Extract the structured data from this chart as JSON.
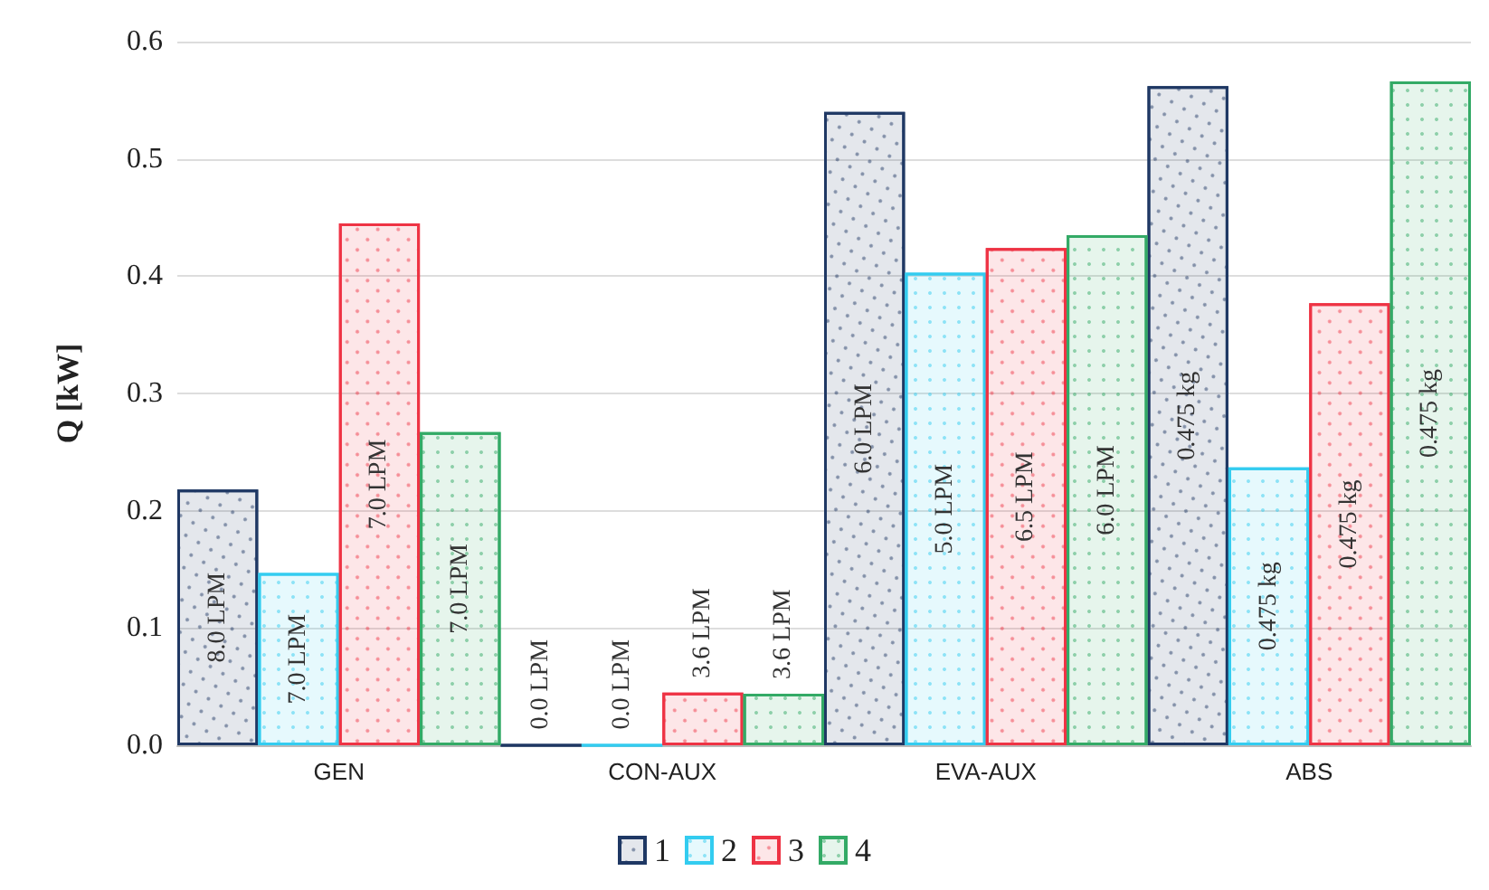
{
  "chart_data": {
    "type": "bar",
    "ylabel": "Q [kW]",
    "categories": [
      "GEN",
      "CON-AUX",
      "EVA-AUX",
      "ABS"
    ],
    "series": [
      {
        "name": "1",
        "color": "#1f3864",
        "values": [
          0.218,
          0,
          0.54,
          0.562
        ]
      },
      {
        "name": "2",
        "color": "#33ccf0",
        "values": [
          0.147,
          0,
          0.403,
          0.237
        ]
      },
      {
        "name": "3",
        "color": "#ee3344",
        "values": [
          0.445,
          0.045,
          0.424,
          0.377
        ]
      },
      {
        "name": "4",
        "color": "#33aa66",
        "values": [
          0.267,
          0.044,
          0.435,
          0.566
        ]
      }
    ],
    "annotations": [
      "8.0 LPM",
      "7.0 LPM",
      "7.0 LPM",
      "7.0 LPM",
      "0.0 LPM",
      "0.0 LPM",
      "3.6 LPM",
      "3.6 LPM",
      "6.0 LPM",
      "5.0 LPM",
      "6.5 LPM",
      "6.0 LPM",
      "0.475 kg",
      "0.475 kg",
      "0.475 kg",
      "0.475 kg"
    ],
    "ylim": [
      0,
      0.6
    ],
    "yticks": [
      {
        "value": 0,
        "label": "0.0"
      },
      0.1,
      0.2,
      0.3,
      0.4,
      0.5,
      0.6
    ],
    "grid": "y",
    "legend": "bottom"
  }
}
